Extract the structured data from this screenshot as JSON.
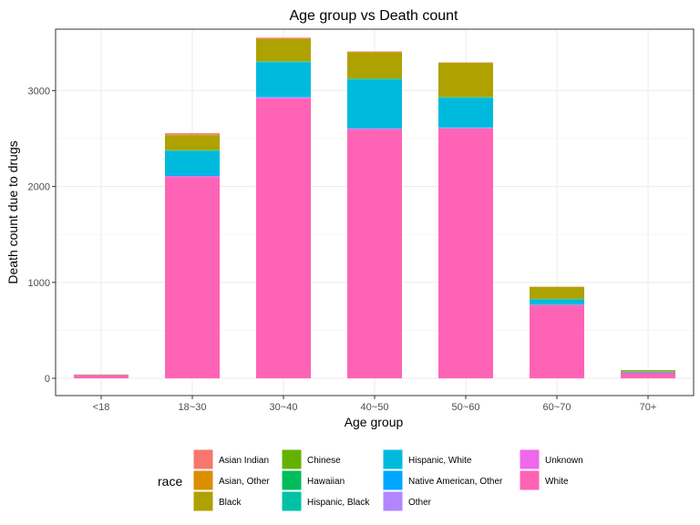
{
  "chart_data": {
    "type": "bar",
    "stacked": true,
    "title": "Age group vs Death count",
    "xlabel": "Age group",
    "ylabel": "Death count due to drugs",
    "categories": [
      "<18",
      "18~30",
      "30~40",
      "40~50",
      "50~60",
      "60~70",
      "70+"
    ],
    "ylim": [
      -180,
      3640
    ],
    "yticks": [
      0,
      1000,
      2000,
      3000
    ],
    "grid": true,
    "legend": {
      "title": "race",
      "position": "bottom"
    },
    "series": [
      {
        "name": "Asian Indian",
        "color": "#F8766D",
        "values": [
          0,
          15,
          10,
          5,
          3,
          2,
          0
        ]
      },
      {
        "name": "Asian, Other",
        "color": "#DB8E00",
        "values": [
          0,
          5,
          5,
          5,
          3,
          1,
          0
        ]
      },
      {
        "name": "Black",
        "color": "#AEA200",
        "values": [
          3,
          155,
          230,
          270,
          355,
          125,
          12
        ]
      },
      {
        "name": "Chinese",
        "color": "#64B200",
        "values": [
          0,
          2,
          3,
          3,
          2,
          2,
          2
        ]
      },
      {
        "name": "Hawaiian",
        "color": "#00BD5C",
        "values": [
          0,
          3,
          3,
          3,
          2,
          1,
          1
        ]
      },
      {
        "name": "Hispanic, Black",
        "color": "#00C1A7",
        "values": [
          0,
          5,
          5,
          5,
          3,
          1,
          1
        ]
      },
      {
        "name": "Hispanic, White",
        "color": "#00BADE",
        "values": [
          2,
          250,
          355,
          505,
          310,
          55,
          10
        ]
      },
      {
        "name": "Native American, Other",
        "color": "#00A6FF",
        "values": [
          0,
          10,
          10,
          8,
          5,
          2,
          0
        ]
      },
      {
        "name": "Other",
        "color": "#B385FF",
        "values": [
          0,
          5,
          5,
          3,
          3,
          1,
          0
        ]
      },
      {
        "name": "Unknown",
        "color": "#EF67EB",
        "values": [
          0,
          5,
          5,
          5,
          3,
          1,
          0
        ]
      },
      {
        "name": "White",
        "color": "#FF63B6",
        "values": [
          35,
          2100,
          2920,
          2595,
          2605,
          765,
          60
        ]
      }
    ]
  }
}
